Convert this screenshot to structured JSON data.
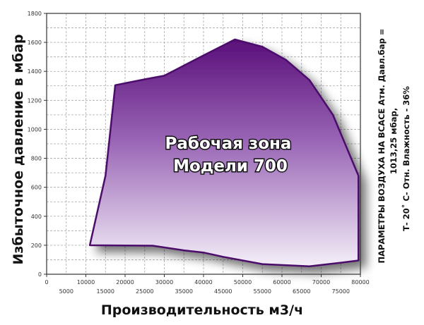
{
  "chart_data": {
    "type": "area",
    "ylabel": "Избыточное давление в мбар",
    "xlabel": "Производительность м3/ч",
    "xlim": [
      0,
      80000
    ],
    "ylim": [
      0,
      1800
    ],
    "y_ticks": [
      "0",
      "200",
      "400",
      "600",
      "800",
      "1000",
      "1200",
      "1400",
      "1600",
      "1800"
    ],
    "x_ticks_upper": [
      "0",
      "10000",
      "20000",
      "30000",
      "40000",
      "50000",
      "60000",
      "70000",
      "80000"
    ],
    "x_ticks_lower": [
      "5000",
      "15000",
      "25000",
      "35000",
      "45000",
      "55000",
      "65000",
      "75000"
    ],
    "grid": true,
    "zone_label": [
      "Рабочая зона",
      "Модели 700"
    ],
    "side_note": [
      "ПАРАМЕТРЫ ВОЗДУХА НА ВСАСЕ  Атм. Давл.бар =",
      "1013,25 мбар,",
      "Т- 20˚ С- Отн. Влажность - 36%"
    ],
    "fill_color_top": "#5a0f7a",
    "fill_color_bottom": "#f4eff8",
    "outline_color": "#4b0a6a",
    "series": [
      {
        "boundary": [
          {
            "x": 11000,
            "y": 200
          },
          {
            "x": 15000,
            "y": 680
          },
          {
            "x": 17500,
            "y": 1305
          },
          {
            "x": 25000,
            "y": 1345
          },
          {
            "x": 30000,
            "y": 1370
          },
          {
            "x": 40000,
            "y": 1510
          },
          {
            "x": 48000,
            "y": 1620
          },
          {
            "x": 55000,
            "y": 1570
          },
          {
            "x": 61000,
            "y": 1480
          },
          {
            "x": 67000,
            "y": 1340
          },
          {
            "x": 73000,
            "y": 1100
          },
          {
            "x": 79500,
            "y": 680
          },
          {
            "x": 79500,
            "y": 95
          },
          {
            "x": 75000,
            "y": 80
          },
          {
            "x": 67000,
            "y": 55
          },
          {
            "x": 55000,
            "y": 70
          },
          {
            "x": 45000,
            "y": 120
          },
          {
            "x": 40000,
            "y": 150
          },
          {
            "x": 35000,
            "y": 165
          },
          {
            "x": 27000,
            "y": 197
          },
          {
            "x": 11000,
            "y": 200
          }
        ]
      }
    ]
  }
}
